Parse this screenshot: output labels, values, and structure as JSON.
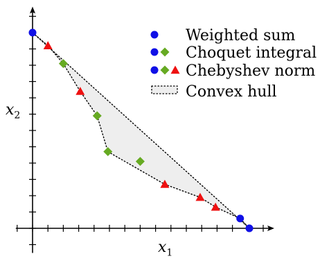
{
  "colors": {
    "weighted_sum": "#1010e6",
    "choquet": "#66aa22",
    "chebyshev": "#ee1111",
    "hull_fill": "#eeeeee",
    "axis": "#000000"
  },
  "chart_data": {
    "type": "scatter",
    "xlabel": "x",
    "xlabel_sub": "1",
    "ylabel": "x",
    "ylabel_sub": "2",
    "xlim": [
      -1,
      15
    ],
    "ylim": [
      -1,
      13
    ],
    "grid": false,
    "legend_position": "top-right",
    "legend": [
      {
        "markers": [
          "circle"
        ],
        "label": "Weighted sum"
      },
      {
        "markers": [
          "circle",
          "diamond"
        ],
        "label": "Choquet integral"
      },
      {
        "markers": [
          "circle",
          "diamond",
          "triangle"
        ],
        "label": "Chebyshev norm"
      },
      {
        "markers": [
          "hull"
        ],
        "label": "Convex hull"
      }
    ],
    "series": [
      {
        "marker": "circle",
        "color": "weighted_sum",
        "points": [
          [
            0,
            12
          ],
          [
            13.5,
            0.6
          ],
          [
            14.1,
            0
          ]
        ]
      },
      {
        "marker": "diamond",
        "color": "choquet",
        "points": [
          [
            2.0,
            10.1
          ],
          [
            4.2,
            6.9
          ],
          [
            4.9,
            4.7
          ],
          [
            7.0,
            4.1
          ]
        ]
      },
      {
        "marker": "triangle",
        "color": "chebyshev",
        "points": [
          [
            1.0,
            11.2
          ],
          [
            3.1,
            8.4
          ],
          [
            8.6,
            2.7
          ],
          [
            10.9,
            1.9
          ],
          [
            11.9,
            1.3
          ]
        ]
      }
    ],
    "hull": [
      [
        0,
        12
      ],
      [
        1.0,
        11.2
      ],
      [
        2.0,
        10.1
      ],
      [
        3.1,
        8.4
      ],
      [
        4.2,
        6.9
      ],
      [
        4.9,
        4.7
      ],
      [
        8.6,
        2.7
      ],
      [
        10.9,
        1.9
      ],
      [
        11.9,
        1.3
      ],
      [
        13.5,
        0.6
      ],
      [
        14.1,
        0
      ]
    ]
  }
}
